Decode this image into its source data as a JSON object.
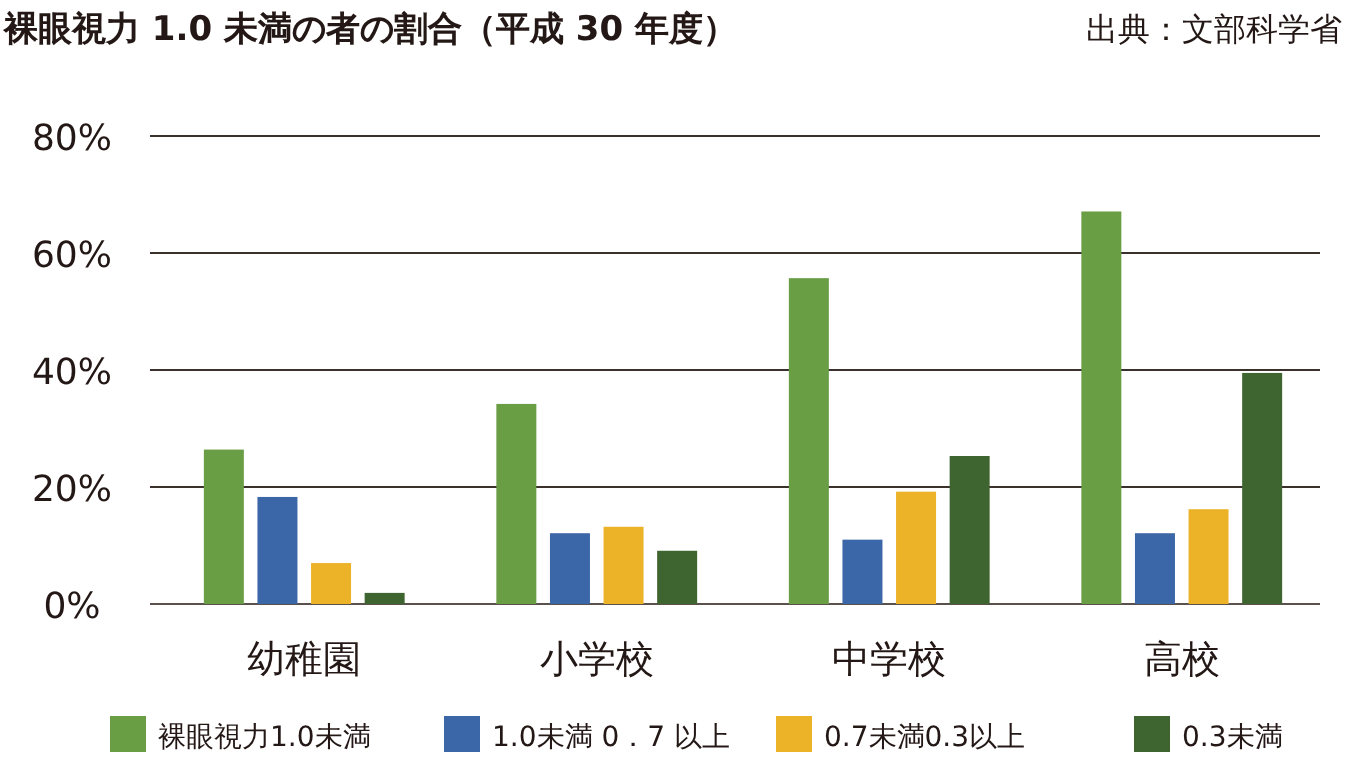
{
  "chart_data": {
    "type": "bar",
    "title": "裸眼視力 1.0 未満の者の割合（平成 30 年度）",
    "annotations": [
      "出典：文部科学省"
    ],
    "categories": [
      "幼稚園",
      "小学校",
      "中学校",
      "高校"
    ],
    "series": [
      {
        "name": "裸眼視力1.0未満",
        "color": "#6a9e45",
        "values": [
          26.4,
          34.2,
          55.7,
          67.1
        ]
      },
      {
        "name": "1.0未満 0．7 以上",
        "color": "#3b66a8",
        "values": [
          18.3,
          12.1,
          11.0,
          12.1
        ]
      },
      {
        "name": "0.7未満0.3以上",
        "color": "#ecb228",
        "values": [
          7.0,
          13.2,
          19.2,
          16.2
        ]
      },
      {
        "name": "0.3未満",
        "color": "#3e6430",
        "values": [
          1.9,
          9.1,
          25.3,
          39.5
        ]
      }
    ],
    "ylim": [
      0,
      80
    ],
    "yticks": [
      {
        "value": 0,
        "label": "0%"
      },
      {
        "value": 20,
        "label": "20%"
      },
      {
        "value": 40,
        "label": "40%"
      },
      {
        "value": 60,
        "label": "60%"
      },
      {
        "value": 80,
        "label": "80%"
      }
    ],
    "grid": "y",
    "legend": "bottom"
  }
}
